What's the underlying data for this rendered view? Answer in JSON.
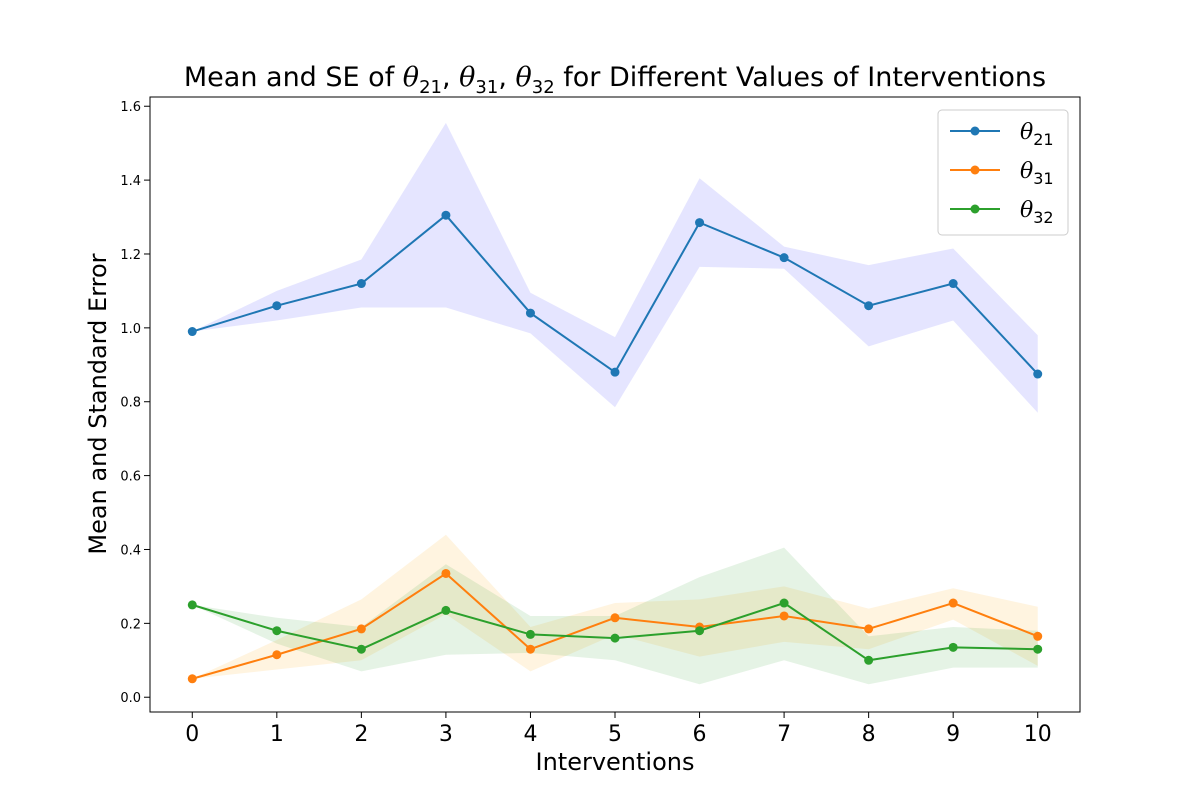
{
  "chart_data": {
    "type": "line",
    "title": "Mean and SE of θ21, θ31, θ32 for Different Values of Interventions",
    "title_parts": {
      "prefix": "Mean and SE of ",
      "sym": "θ",
      "sub1": "21",
      "sub2": "31",
      "sub3": "32",
      "sep": ", ",
      "suffix": " for Different Values of Interventions"
    },
    "xlabel": "Interventions",
    "ylabel": "Mean and Standard Error",
    "x": [
      0,
      1,
      2,
      3,
      4,
      5,
      6,
      7,
      8,
      9,
      10
    ],
    "x_tick_labels": [
      "0",
      "1",
      "2",
      "3",
      "4",
      "5",
      "6",
      "7",
      "8",
      "9",
      "10"
    ],
    "y_tick_labels": [
      "0.0",
      "0.2",
      "0.4",
      "0.6",
      "0.8",
      "1.0",
      "1.2",
      "1.4",
      "1.6"
    ],
    "y_ticks": [
      0.0,
      0.2,
      0.4,
      0.6,
      0.8,
      1.0,
      1.2,
      1.4,
      1.6
    ],
    "xlim": [
      -0.5,
      10.5
    ],
    "ylim": [
      -0.04,
      1.625
    ],
    "grid": false,
    "legend_position": "top-right",
    "series": [
      {
        "name": "θ21",
        "legend_symbol": "θ",
        "legend_sub": "21",
        "color": "#1f77b4",
        "band_color": "#0000ff",
        "band_opacity": 0.1,
        "values": [
          0.99,
          1.06,
          1.12,
          1.305,
          1.04,
          0.88,
          1.285,
          1.19,
          1.06,
          1.12,
          0.875
        ],
        "lower": [
          0.99,
          1.02,
          1.055,
          1.055,
          0.985,
          0.785,
          1.165,
          1.16,
          0.95,
          1.02,
          0.77
        ],
        "upper": [
          0.99,
          1.1,
          1.185,
          1.555,
          1.095,
          0.975,
          1.405,
          1.22,
          1.17,
          1.215,
          0.98
        ]
      },
      {
        "name": "θ31",
        "legend_symbol": "θ",
        "legend_sub": "31",
        "color": "#ff7f0e",
        "band_color": "#ffa500",
        "band_opacity": 0.12,
        "values": [
          0.05,
          0.115,
          0.185,
          0.335,
          0.13,
          0.215,
          0.19,
          0.22,
          0.185,
          0.255,
          0.165
        ],
        "lower": [
          0.05,
          0.075,
          0.1,
          0.225,
          0.07,
          0.17,
          0.11,
          0.15,
          0.13,
          0.21,
          0.085
        ],
        "upper": [
          0.05,
          0.155,
          0.265,
          0.44,
          0.19,
          0.255,
          0.265,
          0.3,
          0.24,
          0.295,
          0.245
        ]
      },
      {
        "name": "θ32",
        "legend_symbol": "θ",
        "legend_sub": "32",
        "color": "#2ca02c",
        "band_color": "#2ca02c",
        "band_opacity": 0.12,
        "values": [
          0.25,
          0.18,
          0.13,
          0.235,
          0.17,
          0.16,
          0.18,
          0.255,
          0.1,
          0.135,
          0.13
        ],
        "lower": [
          0.25,
          0.145,
          0.07,
          0.115,
          0.12,
          0.1,
          0.035,
          0.1,
          0.035,
          0.08,
          0.08
        ],
        "upper": [
          0.25,
          0.215,
          0.19,
          0.36,
          0.22,
          0.22,
          0.325,
          0.405,
          0.165,
          0.19,
          0.18
        ]
      }
    ]
  }
}
